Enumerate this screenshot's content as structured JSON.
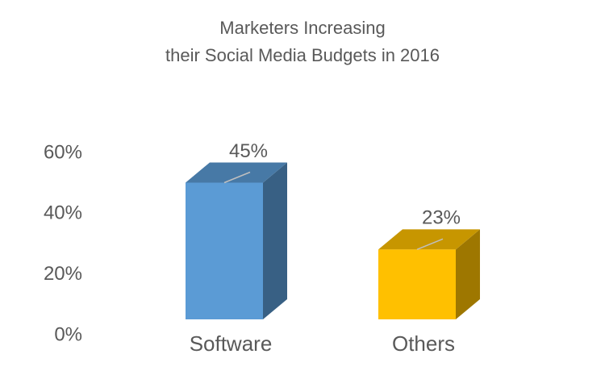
{
  "chart_data": {
    "type": "bar3d",
    "title": [
      "Marketers Increasing",
      "their Social Media Budgets in 2016"
    ],
    "categories": [
      "Software",
      "Others"
    ],
    "values": [
      45,
      23
    ],
    "value_labels": [
      "45%",
      "23%"
    ],
    "colors": [
      "#5b9bd5",
      "#ffc000"
    ],
    "ylim": [
      0,
      60
    ],
    "yticks": [
      {
        "value": 0,
        "label": "0%"
      },
      {
        "value": 20,
        "label": "20%"
      },
      {
        "value": 40,
        "label": "40%"
      },
      {
        "value": 60,
        "label": "60%"
      }
    ],
    "grid": false
  }
}
